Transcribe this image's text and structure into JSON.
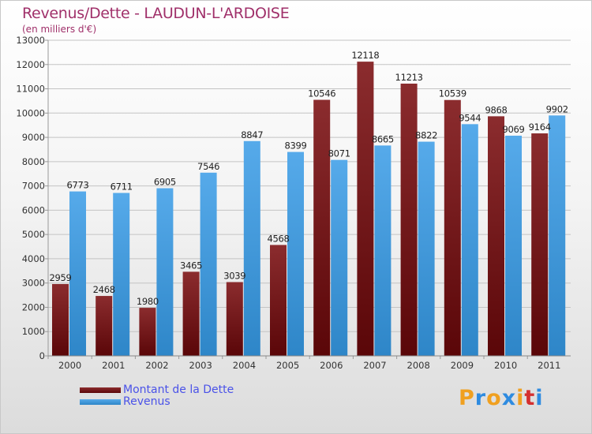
{
  "title": "Revenus/Dette - LAUDUN-L'ARDOISE",
  "subtitle": "(en milliers d'€)",
  "colors": {
    "dette_dark": "#5a0608",
    "dette_light": "#8b2c2e",
    "revenus_dark": "#2e86c8",
    "revenus_light": "#56aaea",
    "title": "#a0306a",
    "legend_text": "#4a52e8"
  },
  "logo": {
    "text": "Proxiti",
    "letter_colors": [
      "#f0a020",
      "#2e8be0",
      "#f0a020",
      "#2e8be0",
      "#f0a020",
      "#d43030",
      "#2e8be0"
    ]
  },
  "chart_data": {
    "type": "bar",
    "title": "Revenus/Dette - LAUDUN-L'ARDOISE",
    "subtitle": "(en milliers d'€)",
    "categories": [
      "2000",
      "2001",
      "2002",
      "2003",
      "2004",
      "2005",
      "2006",
      "2007",
      "2008",
      "2009",
      "2010",
      "2011"
    ],
    "series": [
      {
        "name": "Montant de la Dette",
        "values": [
          2959,
          2468,
          1980,
          3465,
          3039,
          4568,
          10546,
          12118,
          11213,
          10539,
          9868,
          9164
        ]
      },
      {
        "name": "Revenus",
        "values": [
          6773,
          6711,
          6905,
          7546,
          8847,
          8399,
          8071,
          8665,
          8822,
          9544,
          9069,
          9902
        ]
      }
    ],
    "ylim": [
      0,
      13000
    ],
    "yticks": [
      0,
      1000,
      2000,
      3000,
      4000,
      5000,
      6000,
      7000,
      8000,
      9000,
      10000,
      11000,
      12000,
      13000
    ],
    "grid": true,
    "legend": "bottom-left",
    "data_labels": true
  }
}
